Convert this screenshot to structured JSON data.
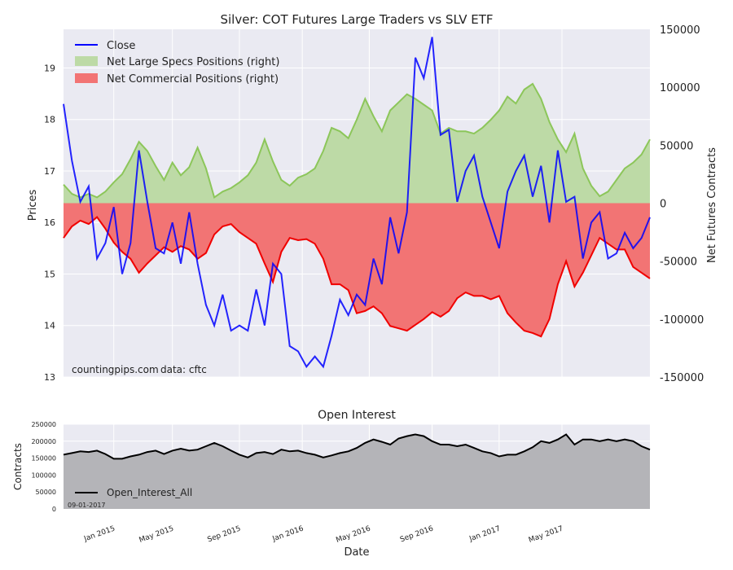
{
  "chart_data": [
    {
      "type": "line",
      "title": "Silver: COT Futures Large Traders vs SLV ETF",
      "ylabel_left": "Prices",
      "ylabel_right": "Net Futures Contracts",
      "ylim_left": [
        13,
        19.75
      ],
      "ylim_right": [
        -150000,
        150000
      ],
      "yticks_left": [
        "13",
        "14",
        "15",
        "16",
        "17",
        "18",
        "19"
      ],
      "yticks_right": [
        "-150000",
        "-100000",
        "-50000",
        "0",
        "50000",
        "100000",
        "150000"
      ],
      "annotation_source": "countingpips.com",
      "annotation_data": "data: cftc",
      "legend": [
        {
          "label": "Close",
          "color": "#0000ff"
        },
        {
          "label": "Net Large Specs Positions (right)",
          "color": "#8cc65a"
        },
        {
          "label": "Net Commercial Positions (right)",
          "color": "#f00000"
        }
      ],
      "x_range": [
        0,
        140
      ],
      "series": [
        {
          "name": "Close",
          "axis": "left",
          "color": "#0000ff",
          "x": [
            0,
            2,
            4,
            6,
            8,
            10,
            12,
            14,
            16,
            18,
            20,
            22,
            24,
            26,
            28,
            30,
            32,
            34,
            36,
            38,
            40,
            42,
            44,
            46,
            48,
            50,
            52,
            54,
            56,
            58,
            60,
            62,
            64,
            66,
            68,
            70,
            72,
            74,
            76,
            78,
            80,
            82,
            84,
            86,
            88,
            90,
            92,
            94,
            96,
            98,
            100,
            102,
            104,
            106,
            108,
            110,
            112,
            114,
            116,
            118,
            120,
            122,
            124,
            126,
            128,
            130,
            132,
            134,
            136,
            138,
            140
          ],
          "values": [
            18.3,
            17.2,
            16.4,
            16.7,
            15.3,
            15.6,
            16.3,
            15.0,
            15.6,
            17.4,
            16.4,
            15.5,
            15.4,
            16.0,
            15.2,
            16.2,
            15.2,
            14.4,
            14.0,
            14.6,
            13.9,
            14.0,
            13.9,
            14.7,
            14.0,
            15.2,
            15.0,
            13.6,
            13.5,
            13.2,
            13.4,
            13.2,
            13.8,
            14.5,
            14.2,
            14.6,
            14.4,
            15.3,
            14.8,
            16.1,
            15.4,
            16.2,
            19.2,
            18.8,
            19.6,
            17.7,
            17.8,
            16.4,
            17.0,
            17.3,
            16.5,
            16.0,
            15.5,
            16.6,
            17.0,
            17.3,
            16.5,
            17.1,
            16.0,
            17.4,
            16.4,
            16.5,
            15.3,
            16.0,
            16.2,
            15.3,
            15.4,
            15.8,
            15.5,
            15.7,
            16.1
          ]
        },
        {
          "name": "Net Large Specs Positions",
          "axis": "right",
          "color": "#8cc65a",
          "x": [
            0,
            2,
            4,
            6,
            8,
            10,
            12,
            14,
            16,
            18,
            20,
            22,
            24,
            26,
            28,
            30,
            32,
            34,
            36,
            38,
            40,
            42,
            44,
            46,
            48,
            50,
            52,
            54,
            56,
            58,
            60,
            62,
            64,
            66,
            68,
            70,
            72,
            74,
            76,
            78,
            80,
            82,
            84,
            86,
            88,
            90,
            92,
            94,
            96,
            98,
            100,
            102,
            104,
            106,
            108,
            110,
            112,
            114,
            116,
            118,
            120,
            122,
            124,
            126,
            128,
            130,
            132,
            134,
            136,
            138,
            140
          ],
          "values": [
            16000,
            8000,
            5000,
            8000,
            5000,
            10000,
            18000,
            25000,
            38000,
            53000,
            45000,
            32000,
            20000,
            35000,
            24000,
            31000,
            48000,
            30000,
            5000,
            10000,
            13000,
            18000,
            24000,
            35000,
            55000,
            36000,
            20000,
            15000,
            22000,
            25000,
            30000,
            45000,
            65000,
            62000,
            56000,
            72000,
            90000,
            75000,
            62000,
            80000,
            87000,
            94000,
            90000,
            85000,
            80000,
            60000,
            65000,
            62000,
            62000,
            60000,
            65000,
            72000,
            80000,
            92000,
            86000,
            98000,
            103000,
            90000,
            70000,
            55000,
            44000,
            60000,
            30000,
            15000,
            6000,
            10000,
            20000,
            30000,
            35000,
            42000,
            55000
          ]
        },
        {
          "name": "Net Commercial Positions",
          "axis": "right",
          "color": "#f00000",
          "x": [
            0,
            2,
            4,
            6,
            8,
            10,
            12,
            14,
            16,
            18,
            20,
            22,
            24,
            26,
            28,
            30,
            32,
            34,
            36,
            38,
            40,
            42,
            44,
            46,
            48,
            50,
            52,
            54,
            56,
            58,
            60,
            62,
            64,
            66,
            68,
            70,
            72,
            74,
            76,
            78,
            80,
            82,
            84,
            86,
            88,
            90,
            92,
            94,
            96,
            98,
            100,
            102,
            104,
            106,
            108,
            110,
            112,
            114,
            116,
            118,
            120,
            122,
            124,
            126,
            128,
            130,
            132,
            134,
            136,
            138,
            140
          ],
          "values": [
            -30000,
            -20000,
            -15000,
            -18000,
            -12000,
            -22000,
            -34000,
            -42000,
            -48000,
            -60000,
            -52000,
            -45000,
            -38000,
            -42000,
            -37000,
            -40000,
            -48000,
            -43000,
            -27000,
            -20000,
            -18000,
            -25000,
            -30000,
            -35000,
            -52000,
            -68000,
            -42000,
            -30000,
            -32000,
            -31000,
            -35000,
            -48000,
            -70000,
            -70000,
            -75000,
            -95000,
            -93000,
            -89000,
            -95000,
            -106000,
            -108000,
            -110000,
            -105000,
            -100000,
            -94000,
            -98000,
            -93000,
            -82000,
            -77000,
            -80000,
            -80000,
            -83000,
            -80000,
            -95000,
            -103000,
            -110000,
            -112000,
            -115000,
            -100000,
            -70000,
            -50000,
            -72000,
            -60000,
            -45000,
            -30000,
            -35000,
            -40000,
            -40000,
            -55000,
            -60000,
            -65000
          ]
        }
      ]
    },
    {
      "type": "area",
      "title": "Open Interest",
      "xlabel": "Date",
      "ylabel": "Contracts",
      "ylim": [
        0,
        250000
      ],
      "yticks": [
        "0",
        "50000",
        "100000",
        "150000",
        "200000",
        "250000"
      ],
      "xticks": [
        "Jan 2015",
        "May 2015",
        "Sep 2015",
        "Jan 2016",
        "May 2016",
        "Sep 2016",
        "Jan 2017",
        "May 2017"
      ],
      "xtick_positions": [
        12,
        26,
        42,
        57,
        73,
        88,
        104,
        119
      ],
      "legend": "Open_Interest_All",
      "date_label": "09-01-2017",
      "x_range": [
        0,
        140
      ],
      "series": [
        {
          "name": "Open_Interest_All",
          "color": "#000000",
          "x": [
            0,
            2,
            4,
            6,
            8,
            10,
            12,
            14,
            16,
            18,
            20,
            22,
            24,
            26,
            28,
            30,
            32,
            34,
            36,
            38,
            40,
            42,
            44,
            46,
            48,
            50,
            52,
            54,
            56,
            58,
            60,
            62,
            64,
            66,
            68,
            70,
            72,
            74,
            76,
            78,
            80,
            82,
            84,
            86,
            88,
            90,
            92,
            94,
            96,
            98,
            100,
            102,
            104,
            106,
            108,
            110,
            112,
            114,
            116,
            118,
            120,
            122,
            124,
            126,
            128,
            130,
            132,
            134,
            136,
            138,
            140
          ],
          "values": [
            160000,
            165000,
            170000,
            168000,
            172000,
            162000,
            148000,
            148000,
            155000,
            160000,
            168000,
            172000,
            162000,
            172000,
            178000,
            172000,
            175000,
            185000,
            195000,
            185000,
            172000,
            160000,
            152000,
            165000,
            168000,
            162000,
            175000,
            170000,
            172000,
            165000,
            160000,
            152000,
            158000,
            165000,
            170000,
            180000,
            195000,
            205000,
            198000,
            190000,
            208000,
            215000,
            220000,
            215000,
            200000,
            190000,
            190000,
            185000,
            190000,
            180000,
            170000,
            165000,
            155000,
            160000,
            160000,
            170000,
            182000,
            200000,
            195000,
            205000,
            220000,
            190000,
            205000,
            205000,
            200000,
            205000,
            200000,
            205000,
            200000,
            185000,
            175000
          ]
        }
      ]
    }
  ]
}
